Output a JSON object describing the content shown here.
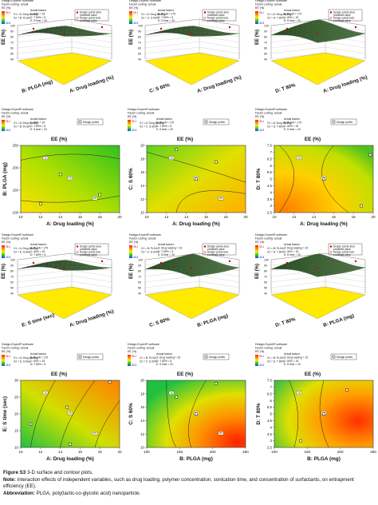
{
  "software": {
    "brand": "Design-Expert® software",
    "coding": "Factor coding: actual",
    "response": "EE (%)",
    "scale_top": "95.1",
    "scale_bottom": "40.3",
    "legend_above": "Design points above predicted value",
    "legend_below": "Design points below predicted value",
    "legend_points": "Design points",
    "actual_factors": "Actual factors"
  },
  "panel_texts": {
    "row1": [
      {
        "x1": "X1 = A: Drug loading",
        "x2": "X2 = B: PLGA",
        "factors": [
          "C: 60% = 15",
          "D: T 80% = 5",
          "E: S time = 20"
        ]
      },
      {
        "x1": "X1 = A: Drug loading",
        "x2": "X2 = C: S 60%",
        "factors": [
          "B: PLGA = 175",
          "D: T 80% = 5",
          "E: S time = 20"
        ]
      },
      {
        "x1": "X1 = A: Drug loading",
        "x2": "X2 = D: T 80%",
        "factors": [
          "B: PLGA = 175",
          "C: 60% = 15",
          "E: S time = 20"
        ]
      }
    ],
    "row3": [
      {
        "x1": "X1 = A: Drug loading",
        "x2": "X2 = E: S time",
        "factors": [
          "B: PLGA = 175",
          "C: 60% = 15",
          "D: T 80% = 5"
        ]
      },
      {
        "x1": "X1 = B: PLGA",
        "x2": "X2 = C: S 60%",
        "factors": [
          "A: Drug loading = 15",
          "D: T 80% = 5",
          "E: S time = 20"
        ]
      },
      {
        "x1": "X1 = B: PLGA",
        "x2": "X2 = D: T 80%",
        "factors": [
          "A: Drug loading = 15",
          "C: 60% = 15",
          "E: S time = 20"
        ]
      }
    ]
  },
  "caption": {
    "figure_label": "Figure S3",
    "figure_text": "3-D surface and contour plots.",
    "note_label": "Note:",
    "note_text": "Interaction effects of independent variables, such as drug loading, polymer concentration, sonication time, and concentration of surfactants, on entrapment efficiency (EE).",
    "abbr_label": "Abbreviation:",
    "abbr_text": "PLGA, poly(lactic-co-glycolic acid) nanoparticle."
  },
  "colors": {
    "low": "#2050ff",
    "mid": "#20c020",
    "high": "#ff2000"
  },
  "chart_data": [
    {
      "type": "surface",
      "panel": "3d-A-B",
      "xlabel": "A: Drug loading (%)",
      "ylabel": "B: PLGA (mg)",
      "zlabel": "EE (%)",
      "zticks": [
        "40",
        "50",
        "60",
        "70",
        "80",
        "90",
        "100"
      ],
      "xticks": [
        "10",
        "12",
        "14",
        "16",
        "18",
        "20"
      ],
      "yticks": [
        "100",
        "150",
        "200",
        "250"
      ]
    },
    {
      "type": "surface",
      "panel": "3d-A-C",
      "xlabel": "A: Drug loading (%)",
      "ylabel": "C: S 60%",
      "zlabel": "EE (%)",
      "zticks": [
        "40",
        "50",
        "60",
        "70",
        "80",
        "90",
        "100"
      ],
      "xticks": [
        "10",
        "12",
        "14",
        "16",
        "18",
        "20"
      ],
      "yticks": [
        "10",
        "12",
        "14",
        "16",
        "18",
        "20"
      ]
    },
    {
      "type": "surface",
      "panel": "3d-A-D",
      "xlabel": "A: Drug loading (%)",
      "ylabel": "D: T 80%",
      "zlabel": "EE (%)",
      "zticks": [
        "40",
        "50",
        "60",
        "70",
        "80",
        "90",
        "100"
      ],
      "xticks": [
        "10",
        "12",
        "14",
        "16",
        "18",
        "20"
      ],
      "yticks": [
        "2.5",
        "5",
        "7.5"
      ]
    },
    {
      "type": "heatmap",
      "panel": "contour-A-B",
      "title": "EE (%)",
      "xlabel": "A: Drug loading (%)",
      "ylabel": "B: PLGA (mg)",
      "xticks": [
        "10",
        "12",
        "14",
        "16",
        "18",
        "20"
      ],
      "yticks": [
        "100",
        "150",
        "200",
        "250"
      ],
      "xlim": [
        10,
        20
      ],
      "ylim": [
        100,
        250
      ],
      "contour_labels": [
        "70",
        "75",
        "80"
      ],
      "points": [
        [
          14,
          185
        ],
        [
          12,
          120
        ],
        [
          18,
          140
        ]
      ]
    },
    {
      "type": "heatmap",
      "panel": "contour-A-C",
      "title": "EE (%)",
      "xlabel": "A: Drug loading (%)",
      "ylabel": "C: S 60%",
      "xticks": [
        "10",
        "12",
        "14",
        "16",
        "18",
        "20"
      ],
      "yticks": [
        "10",
        "12",
        "14",
        "16",
        "18",
        "20"
      ],
      "xlim": [
        10,
        20
      ],
      "ylim": [
        10,
        20
      ],
      "contour_labels": [
        "75",
        "80",
        "85"
      ],
      "points": [
        [
          15,
          15
        ],
        [
          13,
          19.4
        ],
        [
          17,
          17.5
        ]
      ]
    },
    {
      "type": "heatmap",
      "panel": "contour-A-D",
      "title": "EE (%)",
      "xlabel": "A: Drug loading (%)",
      "ylabel": "D: T 80%",
      "xticks": [
        "10",
        "12",
        "14",
        "16",
        "18",
        "20"
      ],
      "yticks": [
        "2.5",
        "3",
        "3.5",
        "4",
        "4.5",
        "5",
        "5.5",
        "6",
        "6.5",
        "7",
        "7.5"
      ],
      "xlim": [
        10,
        20
      ],
      "ylim": [
        2.5,
        7.5
      ],
      "contour_labels": [
        "75",
        "80"
      ],
      "points": [
        [
          15,
          5
        ],
        [
          19.7,
          6.8
        ],
        [
          18.8,
          3
        ]
      ]
    },
    {
      "type": "surface",
      "panel": "3d-A-E",
      "xlabel": "A: Drug loading (%)",
      "ylabel": "E: S time (sec)",
      "zlabel": "EE (%)",
      "zticks": [
        "40",
        "50",
        "60",
        "70",
        "80",
        "90",
        "100"
      ],
      "xticks": [
        "10",
        "12",
        "14",
        "16",
        "18",
        "20"
      ],
      "yticks": [
        "15",
        "20",
        "25",
        "30"
      ]
    },
    {
      "type": "surface",
      "panel": "3d-B-C",
      "xlabel": "B: PLGA (mg)",
      "ylabel": "C: S 60%",
      "zlabel": "EE (%)",
      "zticks": [
        "40",
        "50",
        "60",
        "70",
        "80",
        "90",
        "100"
      ],
      "xticks": [
        "100",
        "150",
        "200",
        "250"
      ],
      "yticks": [
        "10",
        "12",
        "14",
        "16",
        "18",
        "20"
      ]
    },
    {
      "type": "surface",
      "panel": "3d-B-D",
      "xlabel": "B: PLGA (mg)",
      "ylabel": "D: T 80%",
      "zlabel": "EE (%)",
      "zticks": [
        "40",
        "50",
        "60",
        "70",
        "80",
        "90",
        "100"
      ],
      "xticks": [
        "100",
        "150",
        "200",
        "250"
      ],
      "yticks": [
        "2.5",
        "5",
        "7.5"
      ]
    },
    {
      "type": "heatmap",
      "panel": "contour-A-E",
      "title": "EE (%)",
      "xlabel": "A: Drug loading (%)",
      "ylabel": "E: S time (sec)",
      "xticks": [
        "10",
        "12",
        "14",
        "16",
        "18",
        "20"
      ],
      "yticks": [
        "10",
        "15",
        "20",
        "25",
        "30"
      ],
      "xlim": [
        10,
        20
      ],
      "ylim": [
        10,
        30
      ],
      "contour_labels": [
        "70",
        "75",
        "80"
      ],
      "points": [
        [
          14.7,
          22
        ],
        [
          11,
          17
        ],
        [
          19,
          29.5
        ],
        [
          15,
          11
        ]
      ]
    },
    {
      "type": "heatmap",
      "panel": "contour-B-C",
      "title": "EE (%)",
      "xlabel": "B: PLGA (mg)",
      "ylabel": "C: S 60%",
      "xticks": [
        "100",
        "150",
        "200",
        "250"
      ],
      "yticks": [
        "10",
        "12",
        "14",
        "16",
        "18",
        "20"
      ],
      "xlim": [
        100,
        250
      ],
      "ylim": [
        10,
        20
      ],
      "contour_labels": [
        "75",
        "80",
        "85"
      ],
      "points": [
        [
          175,
          15
        ],
        [
          145,
          17.5
        ],
        [
          205,
          19.5
        ]
      ]
    },
    {
      "type": "heatmap",
      "panel": "contour-B-D",
      "title": "EE (%)",
      "xlabel": "B: PLGA (mg)",
      "ylabel": "D: T 80%",
      "xticks": [
        "100",
        "150",
        "200",
        "250"
      ],
      "yticks": [
        "2.5",
        "3",
        "3.5",
        "4",
        "4.5",
        "5",
        "5.5",
        "6",
        "6.5",
        "7",
        "7.5"
      ],
      "xlim": [
        100,
        250
      ],
      "ylim": [
        2.5,
        7.5
      ],
      "contour_labels": [
        "75",
        "80"
      ],
      "points": [
        [
          175,
          5
        ],
        [
          210,
          6.8
        ],
        [
          140,
          3
        ]
      ]
    }
  ]
}
